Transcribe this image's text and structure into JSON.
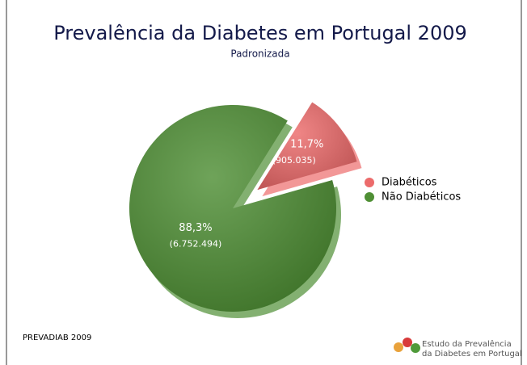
{
  "chart_data": {
    "type": "pie",
    "title": "Prevalência da Diabetes em Portugal 2009",
    "subtitle": "Padronizada",
    "categories": [
      "Diabéticos",
      "Não Diabéticos"
    ],
    "values": [
      11.7,
      88.3
    ],
    "value_labels": [
      "11,7%",
      "88,3%"
    ],
    "counts": [
      905035,
      6752494
    ],
    "count_labels": [
      "(905.035)",
      "(6.752.494)"
    ],
    "colors": [
      "#ec6b6b",
      "#4f8f35"
    ],
    "legend": "right",
    "source": "PREVADIAB 2009",
    "logo": [
      "Estudo da Prevalência",
      "da Diabetes em Portugal"
    ]
  }
}
